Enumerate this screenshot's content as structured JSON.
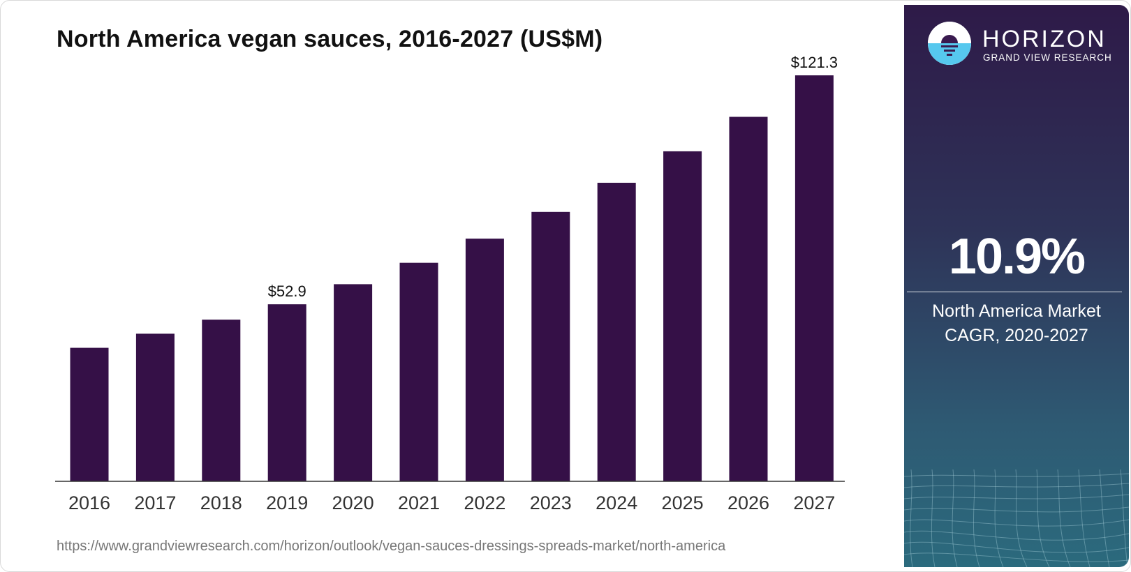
{
  "chart_data": {
    "type": "bar",
    "title": "North America vegan sauces, 2016-2027 (US$M)",
    "categories": [
      "2016",
      "2017",
      "2018",
      "2019",
      "2020",
      "2021",
      "2022",
      "2023",
      "2024",
      "2025",
      "2026",
      "2027"
    ],
    "values": [
      39.9,
      44.1,
      48.3,
      52.9,
      58.9,
      65.3,
      72.5,
      80.5,
      89.2,
      98.6,
      108.9,
      121.3
    ],
    "data_labels": [
      {
        "category": "2019",
        "text": "$52.9"
      },
      {
        "category": "2027",
        "text": "$121.3"
      }
    ],
    "xlabel": "",
    "ylabel": "",
    "ylim": [
      0,
      121.3
    ],
    "grid": false,
    "legend": "none",
    "bar_color": "#351047"
  },
  "source_url": "https://www.grandviewresearch.com/horizon/outlook/vegan-sauces-dressings-spreads-market/north-america",
  "brand": {
    "name": "HORIZON",
    "subtitle": "GRAND VIEW RESEARCH"
  },
  "cagr": {
    "value": "10.9%",
    "label_line1": "North America Market",
    "label_line2": "CAGR, 2020-2027"
  },
  "colors": {
    "bar": "#351047",
    "logo_purple": "#3a1a4f",
    "logo_cyan": "#56c8ee"
  }
}
